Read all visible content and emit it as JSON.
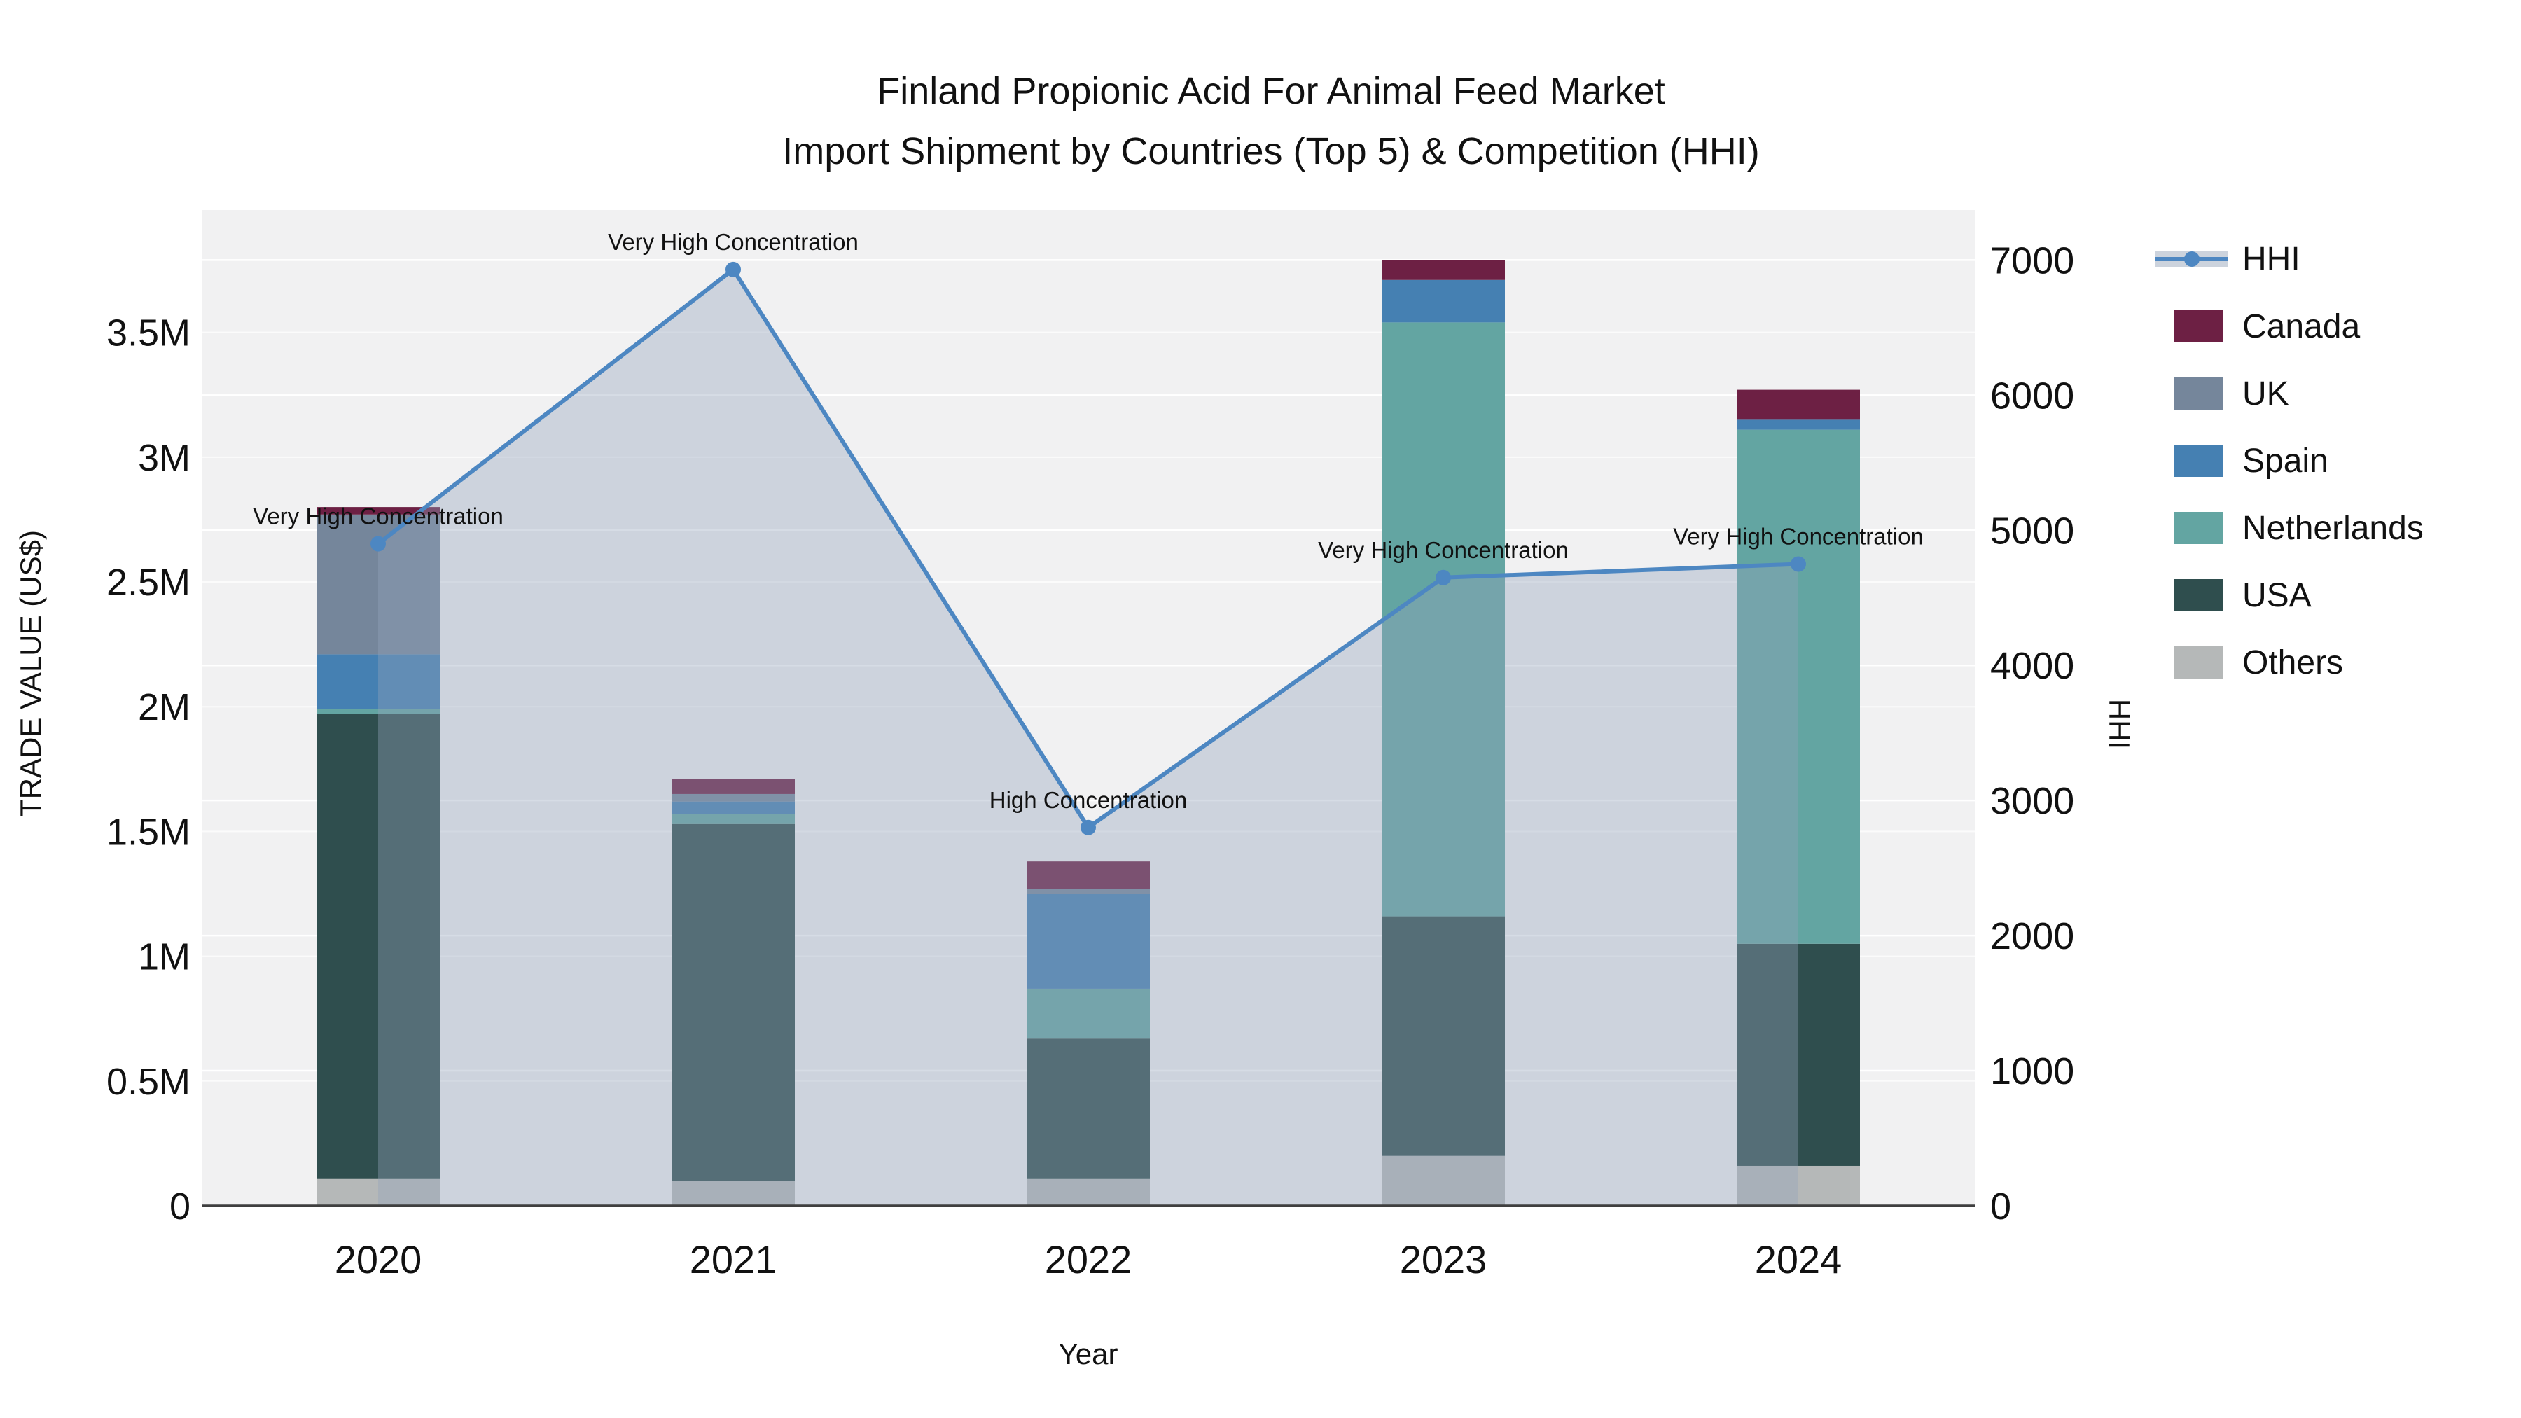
{
  "title": {
    "line1": "Finland Propionic Acid For Animal Feed Market",
    "line2": "Import Shipment by Countries (Top 5) & Competition (HHI)"
  },
  "colors": {
    "plot_bg": "#f1f1f2",
    "grid": "#ffffff",
    "axis_line": "#3f3f3f",
    "hhi_line": "#4d87c2",
    "hhi_area": "rgba(146,163,186,0.38)",
    "text": "#111111"
  },
  "legend": {
    "items": [
      {
        "label": "HHI",
        "type": "line",
        "color": "#4d87c2",
        "band_color": "#ccd3dd"
      },
      {
        "label": "Canada",
        "type": "swatch",
        "color": "#6d2044"
      },
      {
        "label": "UK",
        "type": "swatch",
        "color": "#75869b"
      },
      {
        "label": "Spain",
        "type": "swatch",
        "color": "#4580b2"
      },
      {
        "label": "Netherlands",
        "type": "swatch",
        "color": "#63a5a2"
      },
      {
        "label": "USA",
        "type": "swatch",
        "color": "#2f4e4e"
      },
      {
        "label": "Others",
        "type": "swatch",
        "color": "#b5b8b8"
      }
    ]
  },
  "chart_data": {
    "type": "bar+line",
    "title": "Finland Propionic Acid For Animal Feed Market Import Shipment by Countries (Top 5) & Competition (HHI)",
    "categories": [
      "2020",
      "2021",
      "2022",
      "2023",
      "2024"
    ],
    "bar_series": [
      {
        "name": "Others",
        "color": "#b5b8b8",
        "values": [
          110000,
          100000,
          110000,
          200000,
          160000
        ]
      },
      {
        "name": "USA",
        "color": "#2f4e4e",
        "values": [
          1860000,
          1430000,
          560000,
          960000,
          890000
        ]
      },
      {
        "name": "Netherlands",
        "color": "#63a5a2",
        "values": [
          20000,
          40000,
          200000,
          2380000,
          2060000
        ]
      },
      {
        "name": "Spain",
        "color": "#4580b2",
        "values": [
          220000,
          50000,
          380000,
          170000,
          40000
        ]
      },
      {
        "name": "UK",
        "color": "#75869b",
        "values": [
          560000,
          30000,
          20000,
          0,
          0
        ]
      },
      {
        "name": "Canada",
        "color": "#6d2044",
        "values": [
          30000,
          60000,
          110000,
          80000,
          120000
        ]
      }
    ],
    "line_series": {
      "name": "HHI",
      "color": "#4d87c2",
      "values": [
        4900,
        6930,
        2800,
        4650,
        4750
      ]
    },
    "annotations": [
      {
        "category": "2020",
        "text": "Very High Concentration"
      },
      {
        "category": "2021",
        "text": "Very High Concentration"
      },
      {
        "category": "2022",
        "text": "High Concentration"
      },
      {
        "category": "2023",
        "text": "Very High Concentration"
      },
      {
        "category": "2024",
        "text": "Very High Concentration"
      }
    ],
    "xlabel": "Year",
    "y_left": {
      "title": "TRADE VALUE (US$)",
      "tick_labels": [
        "0",
        "0.5M",
        "1M",
        "1.5M",
        "2M",
        "2.5M",
        "3M",
        "3.5M"
      ],
      "tick_values": [
        0,
        500000,
        1000000,
        1500000,
        2000000,
        2500000,
        3000000,
        3500000
      ],
      "range": [
        0,
        3990000
      ],
      "grid": true
    },
    "y_right": {
      "title": "HHI",
      "tick_labels": [
        "0",
        "1000",
        "2000",
        "3000",
        "4000",
        "5000",
        "6000",
        "7000"
      ],
      "tick_values": [
        0,
        1000,
        2000,
        3000,
        4000,
        5000,
        6000,
        7000
      ],
      "range": [
        0,
        7370
      ],
      "grid": true
    },
    "legend_position": "right",
    "stack_order_bottom_to_top": [
      "Others",
      "USA",
      "Netherlands",
      "Spain",
      "UK",
      "Canada"
    ]
  }
}
